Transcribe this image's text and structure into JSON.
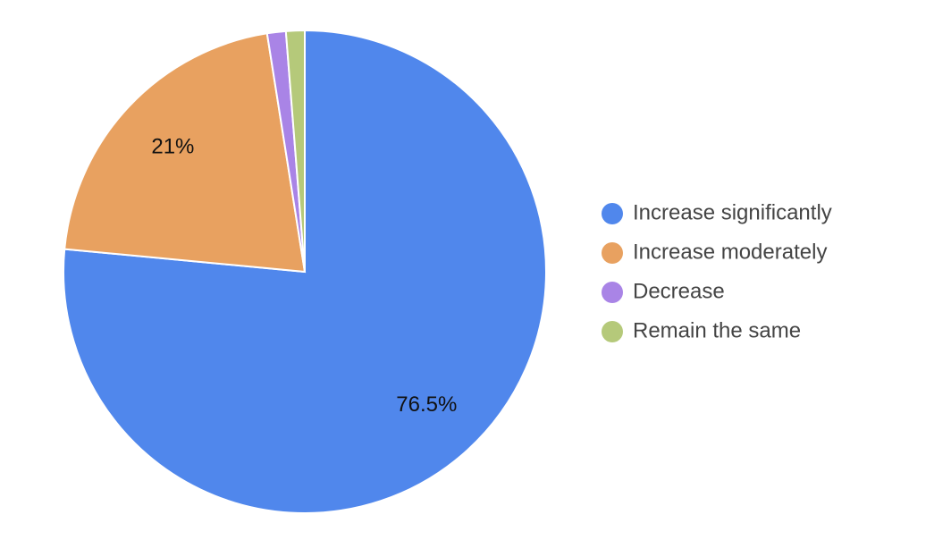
{
  "chart_data": {
    "type": "pie",
    "categories": [
      "Increase significantly",
      "Increase moderately",
      "Decrease",
      "Remain the same"
    ],
    "values": [
      76.5,
      21,
      1.25,
      1.25
    ],
    "value_labels": [
      "76.5%",
      "21%",
      null,
      null
    ],
    "colors": [
      "#5087ec",
      "#e8a160",
      "#a984e6",
      "#b5c97a"
    ],
    "legend": "right"
  }
}
